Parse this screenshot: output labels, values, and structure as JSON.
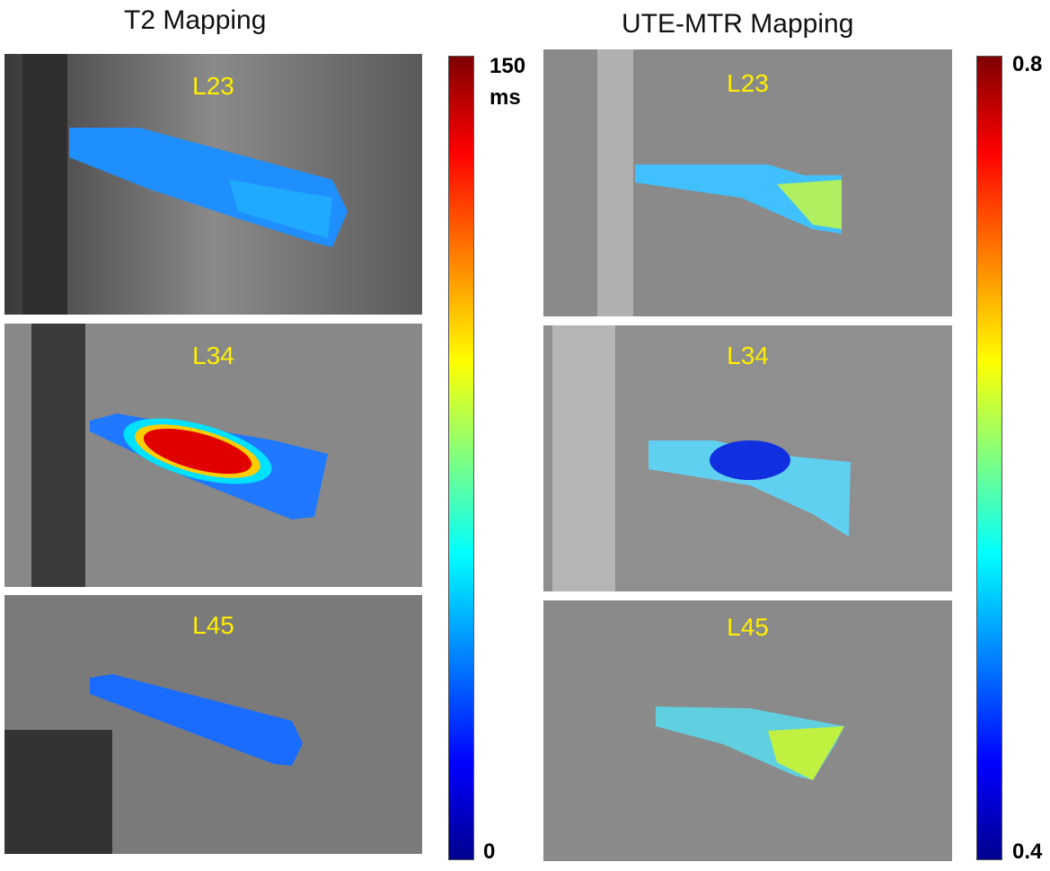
{
  "columns": [
    {
      "title": "T2 Mapping",
      "colorbar": {
        "max": "150",
        "unit": "ms",
        "min": "0",
        "colormap": "jet"
      },
      "panels": [
        {
          "label": "L23"
        },
        {
          "label": "L34"
        },
        {
          "label": "L45"
        }
      ]
    },
    {
      "title": "UTE-MTR Mapping",
      "colorbar": {
        "max": "0.8",
        "min": "0.4",
        "colormap": "jet"
      },
      "panels": [
        {
          "label": "L23"
        },
        {
          "label": "L34"
        },
        {
          "label": "L45"
        }
      ]
    }
  ]
}
